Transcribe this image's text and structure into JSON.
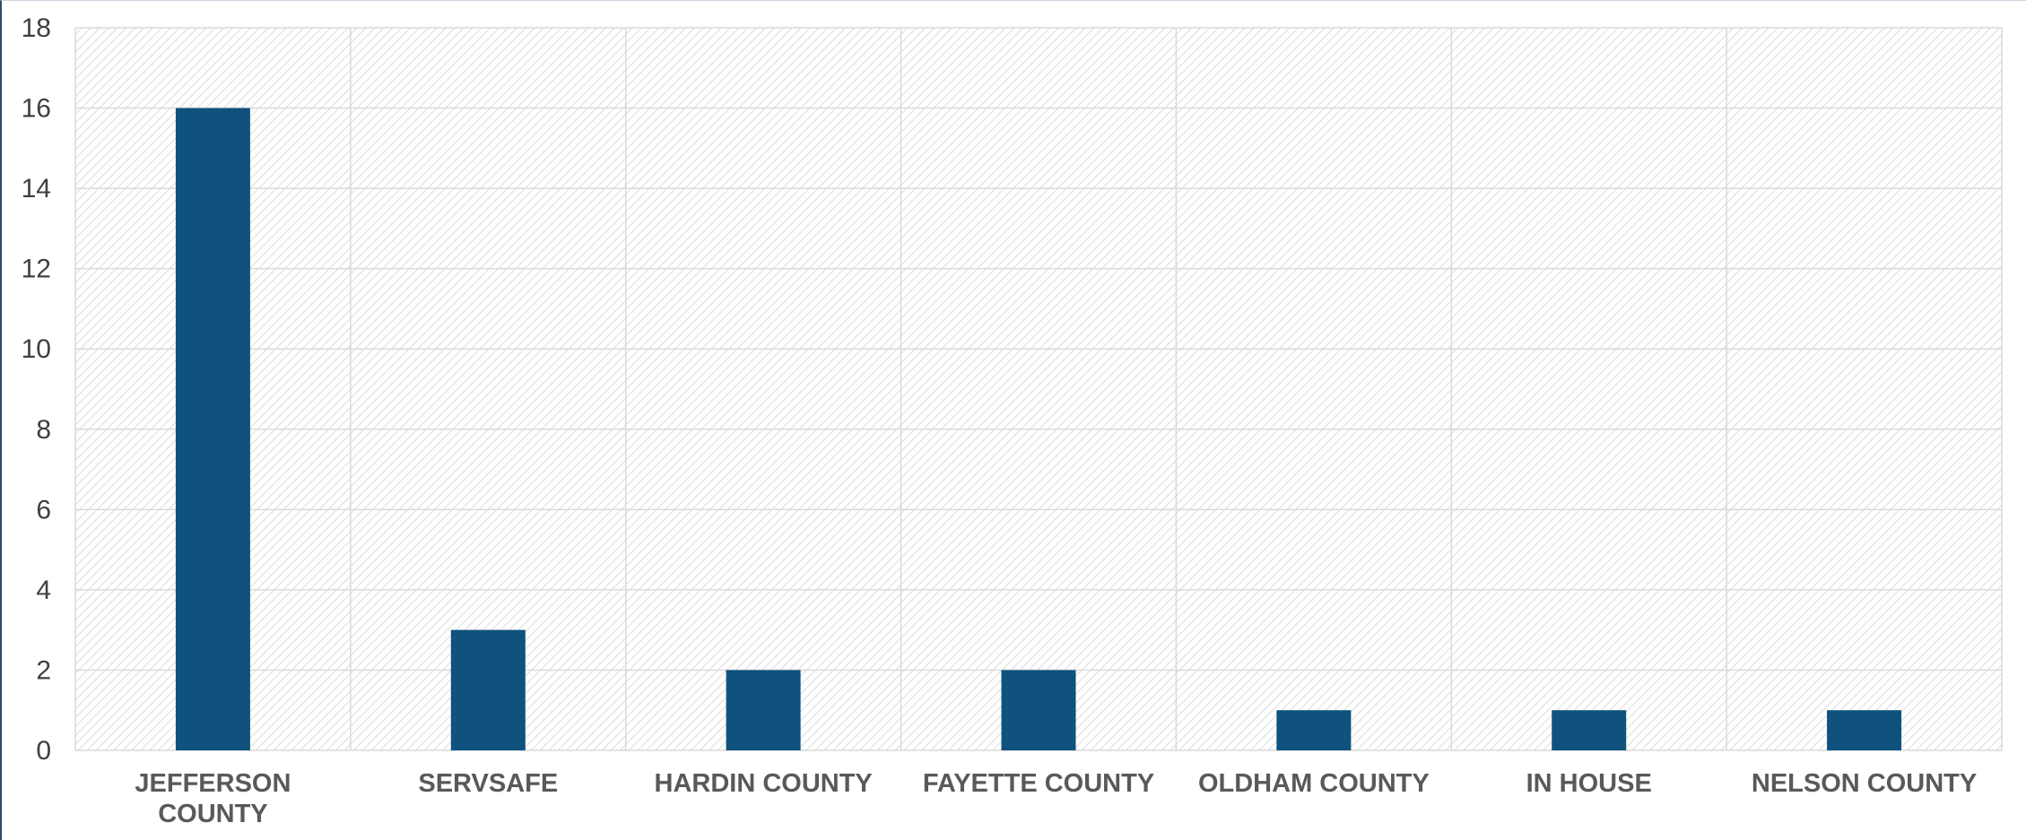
{
  "chart_data": {
    "type": "bar",
    "categories": [
      "JEFFERSON COUNTY",
      "SERVSAFE",
      "HARDIN COUNTY",
      "FAYETTE COUNTY",
      "OLDHAM COUNTY",
      "IN HOUSE",
      "NELSON COUNTY"
    ],
    "category_lines": [
      [
        "JEFFERSON",
        "COUNTY"
      ],
      [
        "SERVSAFE"
      ],
      [
        "HARDIN COUNTY"
      ],
      [
        "FAYETTE COUNTY"
      ],
      [
        "OLDHAM COUNTY"
      ],
      [
        "IN HOUSE"
      ],
      [
        "NELSON COUNTY"
      ]
    ],
    "values": [
      16,
      3,
      2,
      2,
      1,
      1,
      1
    ],
    "ylim": [
      0,
      18
    ],
    "yticks": [
      "0",
      "2",
      "4",
      "6",
      "8",
      "10",
      "12",
      "14",
      "16",
      "18"
    ],
    "title": "",
    "xlabel": "",
    "ylabel": "",
    "grid": true,
    "legend": "none",
    "bar_color": "#0f527d",
    "plot_background": "hatched light gray"
  }
}
